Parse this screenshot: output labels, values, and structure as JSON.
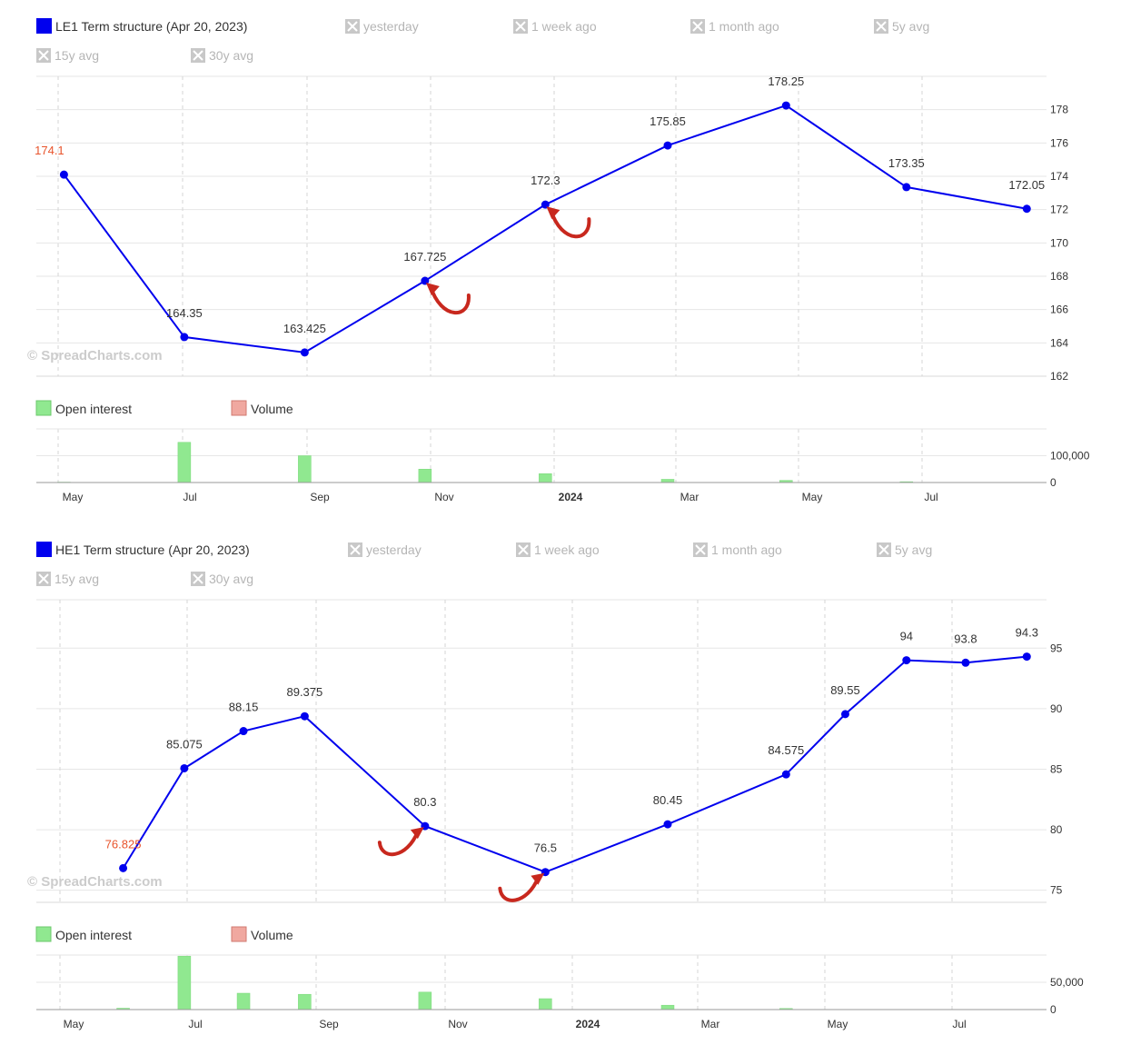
{
  "watermark": "© SpreadCharts.com",
  "colors": {
    "line": "#0000ee",
    "first_label": "#e8542c",
    "open_interest": "#90e890",
    "volume": "#f0a8a0",
    "arrow": "#c8281e",
    "grid": "#e6e6e6",
    "disabled": "#b5b5b5"
  },
  "chart_data": [
    {
      "type": "line",
      "title": "LE1 Term structure (Apr 20, 2023)",
      "legend": {
        "main": "LE1 Term structure (Apr 20, 2023)",
        "disabled": [
          "yesterday",
          "1 week ago",
          "1 month ago",
          "5y avg",
          "15y avg",
          "30y avg"
        ],
        "disabled_icon": "close-box-icon"
      },
      "x_ticks": [
        "May",
        "Jul",
        "Sep",
        "Nov",
        "2024",
        "Mar",
        "May",
        "Jul"
      ],
      "x_tick_bold": "2024",
      "x_range": [
        "2023-04-01",
        "2024-08-25"
      ],
      "ylim": [
        162,
        180
      ],
      "y_ticks": [
        162,
        164,
        166,
        168,
        170,
        172,
        174,
        176,
        178
      ],
      "x": [
        "2023-04-15",
        "2023-06-15",
        "2023-08-15",
        "2023-10-15",
        "2023-12-15",
        "2024-02-15",
        "2024-04-15",
        "2024-06-15",
        "2024-08-15"
      ],
      "values": [
        174.1,
        164.35,
        163.425,
        167.725,
        172.3,
        175.85,
        178.25,
        173.35,
        172.05
      ],
      "value_labels": [
        "174.1",
        "164.35",
        "163.425",
        "167.725",
        "172.3",
        "175.85",
        "178.25",
        "173.35",
        "172.05"
      ],
      "arrows": [
        {
          "at": "2023-10-15",
          "value": 167.725,
          "direction": "left"
        },
        {
          "at": "2023-12-15",
          "value": 172.3,
          "direction": "left"
        }
      ],
      "volume_legend": {
        "open_interest": "Open interest",
        "volume": "Volume"
      },
      "volume_ticks": [
        "0",
        "100,000"
      ],
      "volume_ylim": [
        0,
        200000
      ],
      "open_interest": [
        1500,
        150000,
        100000,
        50000,
        33000,
        12000,
        8000,
        3000,
        0
      ]
    },
    {
      "type": "line",
      "title": "HE1 Term structure (Apr 20, 2023)",
      "legend": {
        "main": "HE1 Term structure (Apr 20, 2023)",
        "disabled": [
          "yesterday",
          "1 week ago",
          "1 month ago",
          "5y avg",
          "15y avg",
          "30y avg"
        ],
        "disabled_icon": "close-box-icon"
      },
      "x_ticks": [
        "May",
        "Jul",
        "Sep",
        "Nov",
        "2024",
        "Mar",
        "May",
        "Jul"
      ],
      "x_tick_bold": "2024",
      "x_range": [
        "2023-04-01",
        "2024-08-25"
      ],
      "ylim": [
        74,
        99
      ],
      "y_ticks": [
        75,
        80,
        85,
        90,
        95
      ],
      "x": [
        "2023-05-15",
        "2023-06-15",
        "2023-07-15",
        "2023-08-15",
        "2023-10-15",
        "2023-12-15",
        "2024-02-15",
        "2024-04-15",
        "2024-05-15",
        "2024-06-15",
        "2024-07-15",
        "2024-08-15"
      ],
      "values": [
        76.825,
        85.075,
        88.15,
        89.375,
        80.3,
        76.5,
        80.45,
        84.575,
        89.55,
        94,
        93.8,
        94.3
      ],
      "value_labels": [
        "76.825",
        "85.075",
        "88.15",
        "89.375",
        "80.3",
        "76.5",
        "80.45",
        "84.575",
        "89.55",
        "94",
        "93.8",
        "94.3"
      ],
      "arrows": [
        {
          "at": "2023-10-15",
          "value": 80.3,
          "direction": "right"
        },
        {
          "at": "2023-12-15",
          "value": 76.5,
          "direction": "right"
        }
      ],
      "volume_legend": {
        "open_interest": "Open interest",
        "volume": "Volume"
      },
      "volume_ticks": [
        "0",
        "50,000"
      ],
      "volume_ylim": [
        0,
        100000
      ],
      "open_interest": [
        2500,
        98000,
        30000,
        28000,
        32000,
        20000,
        8000,
        2000,
        300,
        200,
        100,
        100
      ]
    }
  ]
}
